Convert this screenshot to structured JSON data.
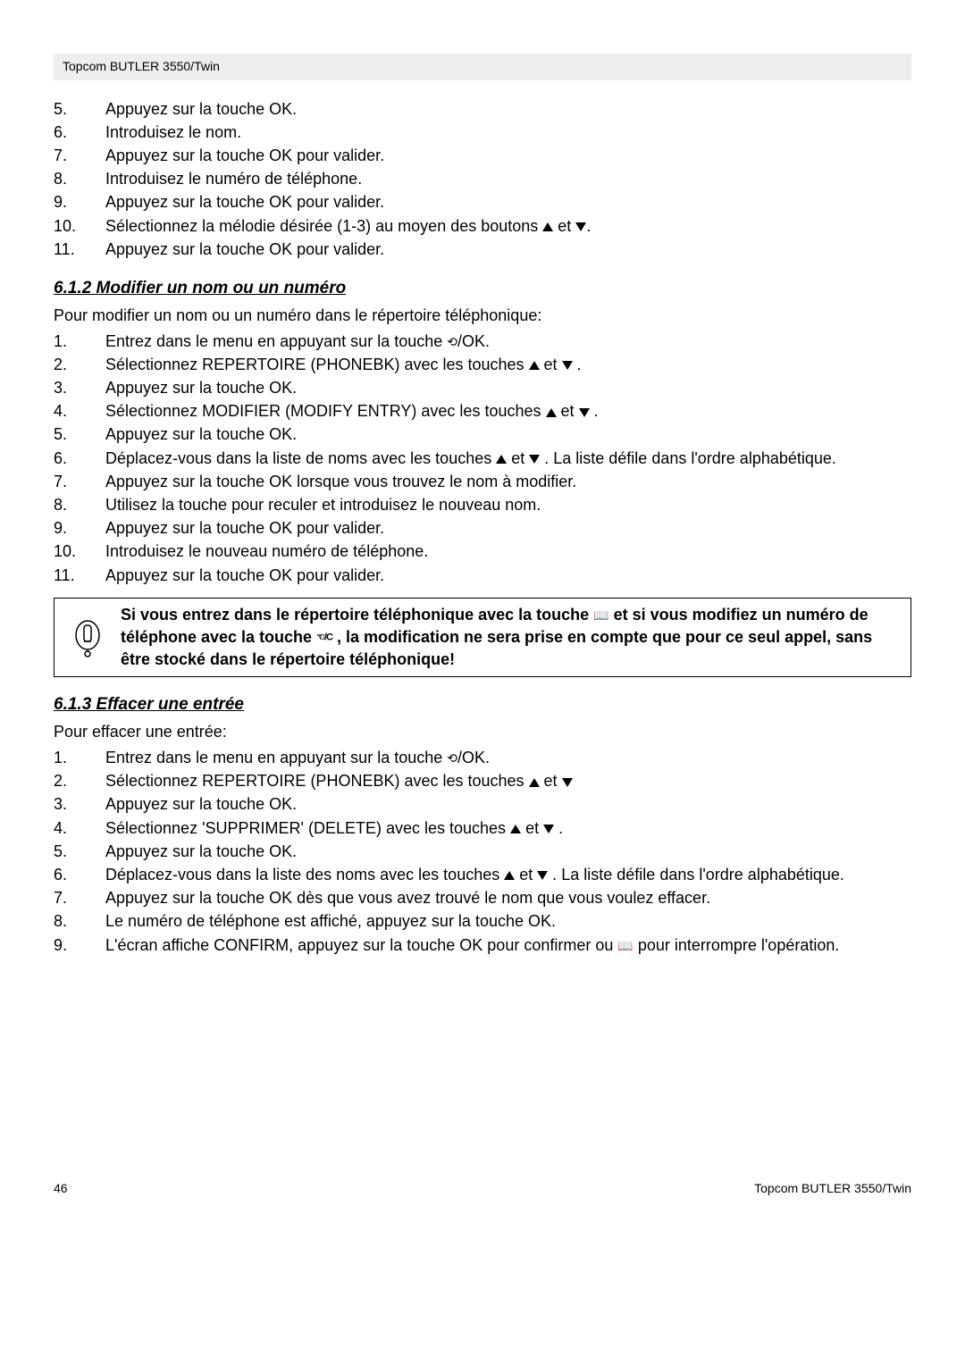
{
  "header": "Topcom BUTLER 3550/Twin",
  "list1": [
    {
      "n": "5.",
      "t": "Appuyez sur la touche OK."
    },
    {
      "n": "6.",
      "t": "Introduisez le nom."
    },
    {
      "n": "7.",
      "t": "Appuyez sur la touche OK pour valider."
    },
    {
      "n": "8.",
      "t": "Introduisez le numéro de téléphone."
    },
    {
      "n": "9.",
      "t": "Appuyez sur la touche OK pour valider."
    },
    {
      "n": "10.",
      "t": "Sélectionnez la mélodie désirée (1-3) au moyen des boutons ▲ et ▼."
    },
    {
      "n": "11.",
      "t": "Appuyez sur la touche OK pour valider."
    }
  ],
  "section2": {
    "heading": "6.1.2 Modifier un nom ou un numéro",
    "intro": "Pour modifier un nom ou un numéro dans le répertoire téléphonique:",
    "items": [
      {
        "n": "1.",
        "t": "Entrez dans le menu en appuyant sur la touche  ⟲/OK."
      },
      {
        "n": "2.",
        "t": "Sélectionnez REPERTOIRE (PHONEBK) avec les touches ▲ et ▼ ."
      },
      {
        "n": "3.",
        "t": "Appuyez sur la touche OK."
      },
      {
        "n": "4.",
        "t": "Sélectionnez MODIFIER (MODIFY ENTRY) avec les touches ▲ et ▼ ."
      },
      {
        "n": "5.",
        "t": "Appuyez sur la touche OK."
      },
      {
        "n": "6.",
        "t": "Déplacez-vous dans la liste de noms avec les touches ▲ et ▼ . La liste défile dans l'ordre alphabétique."
      },
      {
        "n": "7.",
        "t": "Appuyez sur la touche OK lorsque vous trouvez le nom à modifier."
      },
      {
        "n": "8.",
        "t": "Utilisez la touche  pour reculer et introduisez le nouveau nom."
      },
      {
        "n": "9.",
        "t": "Appuyez sur la touche OK pour valider."
      },
      {
        "n": "10.",
        "t": "Introduisez le nouveau numéro de téléphone."
      },
      {
        "n": "11.",
        "t": "Appuyez sur la touche OK pour valider."
      }
    ]
  },
  "callout": {
    "pre": "Si vous entrez dans le répertoire téléphonique avec la touche ",
    "mid1": " et si vous modifiez un numéro de téléphone avec la touche ",
    "arc": "☜/C",
    "post": " , la modification ne sera prise en compte que pour ce seul appel, sans être stocké dans le répertoire téléphonique!"
  },
  "section3": {
    "heading": "6.1.3 Effacer une entrée",
    "intro": "Pour effacer une entrée:",
    "items": [
      {
        "n": "1.",
        "t": "Entrez dans le menu en appuyant sur la touche  ⟲/OK."
      },
      {
        "n": "2.",
        "t": "Sélectionnez REPERTOIRE (PHONEBK) avec les touches ▲ et ▼"
      },
      {
        "n": "3.",
        "t": "Appuyez sur la touche OK."
      },
      {
        "n": "4.",
        "t": "Sélectionnez 'SUPPRIMER' (DELETE) avec les touches ▲ et ▼ ."
      },
      {
        "n": "5.",
        "t": "Appuyez sur la touche OK."
      },
      {
        "n": "6.",
        "t": "Déplacez-vous dans la liste des noms avec les touches ▲ et ▼ . La liste défile dans l'ordre alphabétique."
      },
      {
        "n": "7.",
        "t": "Appuyez sur la touche OK dès que vous avez trouvé le nom que vous voulez effacer."
      },
      {
        "n": "8.",
        "t": "Le numéro de téléphone est affiché, appuyez sur la touche OK."
      },
      {
        "n": "9.",
        "t": "L'écran affiche CONFIRM, appuyez sur la touche OK pour confirmer ou 📖 pour interrompre l'opération."
      }
    ]
  },
  "footer": {
    "page": "46",
    "title": "Topcom BUTLER 3550/Twin"
  }
}
